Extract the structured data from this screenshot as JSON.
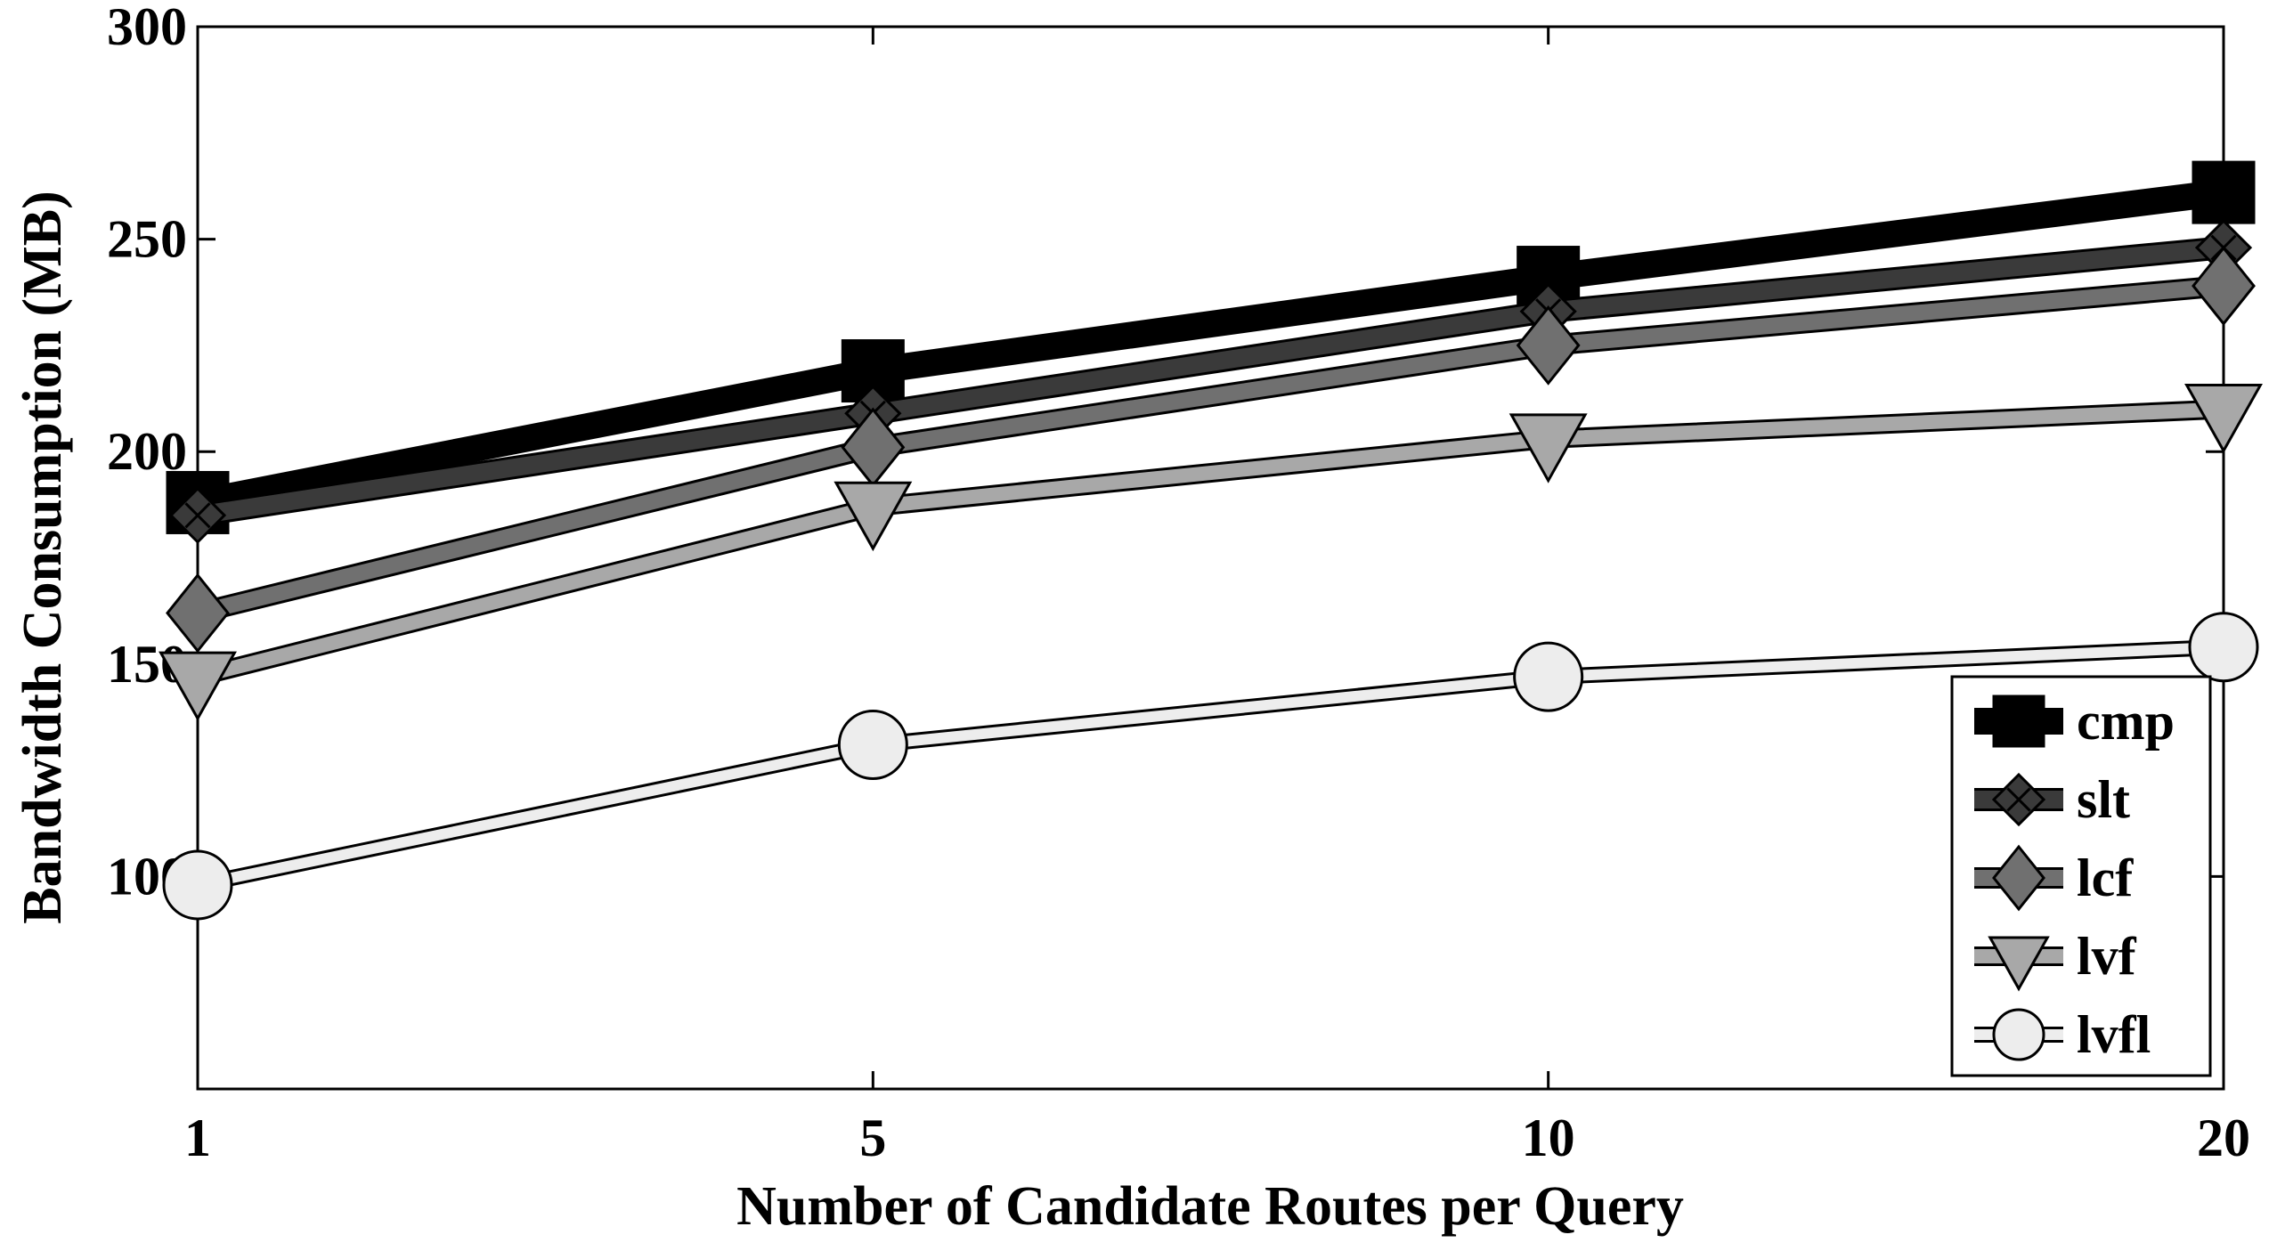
{
  "chart_data": {
    "type": "line",
    "xlabel": "Number of Candidate Routes per Query",
    "ylabel": "Bandwidth Consumption (MB)",
    "categories": [
      "1",
      "5",
      "10",
      "20"
    ],
    "y_ticks": [
      "100",
      "150",
      "200",
      "250",
      "300"
    ],
    "ylim": [
      50,
      300
    ],
    "grid": false,
    "legend_position": "bottom-right",
    "series": [
      {
        "name": "cmp",
        "values": [
          188,
          219,
          241,
          261
        ],
        "color": "#000000",
        "marker": "square"
      },
      {
        "name": "slt",
        "values": [
          185,
          209,
          233,
          248
        ],
        "color": "#3a3a3a",
        "marker": "x-diamond"
      },
      {
        "name": "lcf",
        "values": [
          162,
          201,
          225,
          239
        ],
        "color": "#707070",
        "marker": "diamond"
      },
      {
        "name": "lvf",
        "values": [
          147,
          187,
          203,
          210
        ],
        "color": "#a8a8a8",
        "marker": "triangle-down"
      },
      {
        "name": "lvfl",
        "values": [
          98,
          131,
          147,
          154
        ],
        "color": "#ededed",
        "marker": "circle"
      }
    ]
  }
}
